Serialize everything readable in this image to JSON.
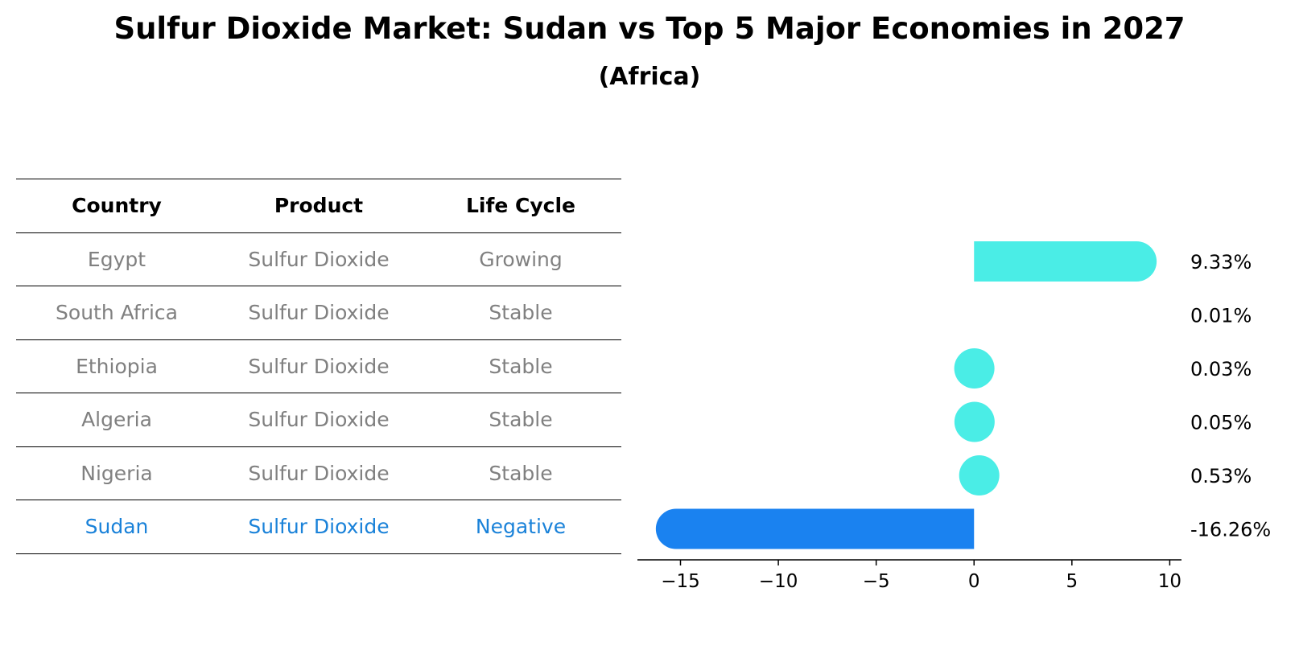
{
  "title": "Sulfur Dioxide Market: Sudan vs Top 5 Major Economies in 2027",
  "subtitle": "(Africa)",
  "table": {
    "headers": [
      "Country",
      "Product",
      "Life Cycle"
    ],
    "rows": [
      {
        "country": "Egypt",
        "product": "Sulfur Dioxide",
        "life_cycle": "Growing"
      },
      {
        "country": "South Africa",
        "product": "Sulfur Dioxide",
        "life_cycle": "Stable"
      },
      {
        "country": "Ethiopia",
        "product": "Sulfur Dioxide",
        "life_cycle": "Stable"
      },
      {
        "country": "Algeria",
        "product": "Sulfur Dioxide",
        "life_cycle": "Stable"
      },
      {
        "country": "Nigeria",
        "product": "Sulfur Dioxide",
        "life_cycle": "Stable"
      },
      {
        "country": "Sudan",
        "product": "Sulfur Dioxide",
        "life_cycle": "Negative"
      }
    ]
  },
  "chart_data": {
    "type": "bar",
    "orientation": "horizontal",
    "categories": [
      "Egypt",
      "South Africa",
      "Ethiopia",
      "Algeria",
      "Nigeria",
      "Sudan"
    ],
    "values": [
      9.33,
      0.01,
      0.03,
      0.05,
      0.53,
      -16.26
    ],
    "value_labels": [
      "9.33%",
      "0.01%",
      "0.03%",
      "0.05%",
      "0.53%",
      "-16.26%"
    ],
    "xlim": [
      -17.2,
      10.6
    ],
    "xticks": [
      -15,
      -10,
      -5,
      0,
      5,
      10
    ],
    "xtick_labels": [
      "−15",
      "−10",
      "−5",
      "0",
      "5",
      "10"
    ],
    "colors": {
      "positive": "#4aede6",
      "negative": "#1a82f0",
      "axis": "#000000"
    }
  }
}
